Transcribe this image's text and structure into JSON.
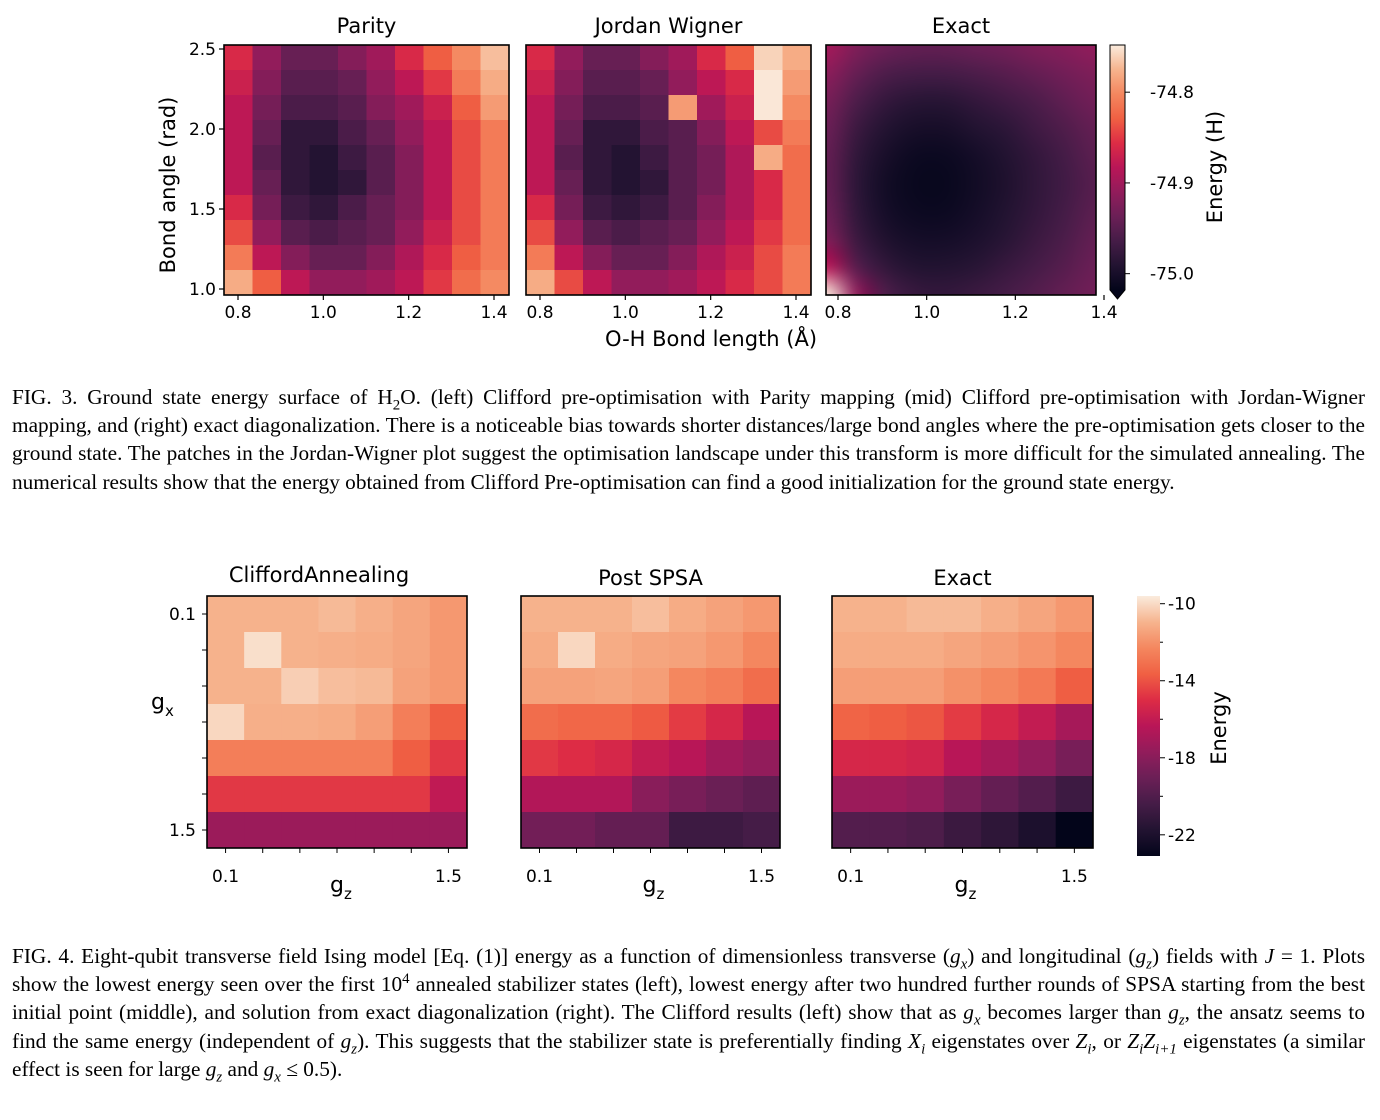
{
  "figure3": {
    "chart_data": [
      {
        "type": "heatmap",
        "title": "Parity",
        "ylabel": "Bond angle (rad)",
        "x": [
          0.8,
          0.867,
          0.933,
          1.0,
          1.067,
          1.133,
          1.2,
          1.267,
          1.333,
          1.4
        ],
        "y": [
          2.5,
          2.333,
          2.167,
          2.0,
          1.833,
          1.667,
          1.5,
          1.333,
          1.167,
          1.0
        ],
        "xticks": [
          "0.8",
          "1.0",
          "1.2",
          "1.4"
        ],
        "yticks": [
          "1.0",
          "1.5",
          "2.0",
          "2.5"
        ],
        "z": [
          [
            -74.86,
            -74.91,
            -74.94,
            -74.94,
            -74.92,
            -74.9,
            -74.86,
            -74.83,
            -74.8,
            -74.77
          ],
          [
            -74.87,
            -74.92,
            -74.95,
            -74.95,
            -74.94,
            -74.91,
            -74.88,
            -74.85,
            -74.81,
            -74.78
          ],
          [
            -74.88,
            -74.93,
            -74.96,
            -74.96,
            -74.95,
            -74.92,
            -74.9,
            -74.87,
            -74.83,
            -74.79
          ],
          [
            -74.88,
            -74.94,
            -74.98,
            -74.98,
            -74.96,
            -74.94,
            -74.91,
            -74.88,
            -74.84,
            -74.81
          ],
          [
            -74.88,
            -74.95,
            -74.98,
            -74.99,
            -74.97,
            -74.95,
            -74.92,
            -74.88,
            -74.84,
            -74.81
          ],
          [
            -74.88,
            -74.94,
            -74.98,
            -74.99,
            -74.98,
            -74.95,
            -74.92,
            -74.88,
            -74.84,
            -74.81
          ],
          [
            -74.86,
            -74.93,
            -74.97,
            -74.98,
            -74.96,
            -74.94,
            -74.92,
            -74.88,
            -74.84,
            -74.81
          ],
          [
            -74.84,
            -74.91,
            -74.95,
            -74.96,
            -74.95,
            -74.94,
            -74.91,
            -74.87,
            -74.84,
            -74.81
          ],
          [
            -74.81,
            -74.88,
            -74.92,
            -74.94,
            -74.94,
            -74.92,
            -74.89,
            -74.86,
            -74.83,
            -74.81
          ],
          [
            -74.78,
            -74.83,
            -74.88,
            -74.91,
            -74.91,
            -74.9,
            -74.88,
            -74.85,
            -74.82,
            -74.8
          ]
        ]
      },
      {
        "type": "heatmap",
        "title": "Jordan Wigner",
        "x": [
          0.8,
          0.867,
          0.933,
          1.0,
          1.067,
          1.133,
          1.2,
          1.267,
          1.333,
          1.4
        ],
        "y": [
          2.5,
          2.333,
          2.167,
          2.0,
          1.833,
          1.667,
          1.5,
          1.333,
          1.167,
          1.0
        ],
        "xticks": [
          "0.8",
          "1.0",
          "1.2",
          "1.4"
        ],
        "z": [
          [
            -74.86,
            -74.91,
            -74.94,
            -74.94,
            -74.92,
            -74.9,
            -74.86,
            -74.83,
            -74.76,
            -74.78
          ],
          [
            -74.87,
            -74.92,
            -74.95,
            -74.95,
            -74.94,
            -74.91,
            -74.88,
            -74.86,
            -74.75,
            -74.79
          ],
          [
            -74.88,
            -74.93,
            -74.96,
            -74.96,
            -74.95,
            -74.79,
            -74.9,
            -74.87,
            -74.75,
            -74.8
          ],
          [
            -74.88,
            -74.94,
            -74.98,
            -74.98,
            -74.96,
            -74.95,
            -74.92,
            -74.88,
            -74.84,
            -74.81
          ],
          [
            -74.88,
            -74.95,
            -74.98,
            -74.99,
            -74.97,
            -74.95,
            -74.93,
            -74.89,
            -74.78,
            -74.82
          ],
          [
            -74.88,
            -74.94,
            -74.98,
            -74.99,
            -74.98,
            -74.95,
            -74.93,
            -74.89,
            -74.86,
            -74.82
          ],
          [
            -74.86,
            -74.93,
            -74.97,
            -74.98,
            -74.97,
            -74.95,
            -74.92,
            -74.89,
            -74.86,
            -74.82
          ],
          [
            -74.84,
            -74.91,
            -74.95,
            -74.96,
            -74.95,
            -74.94,
            -74.91,
            -74.88,
            -74.85,
            -74.82
          ],
          [
            -74.81,
            -74.88,
            -74.92,
            -74.94,
            -74.94,
            -74.92,
            -74.89,
            -74.87,
            -74.84,
            -74.81
          ],
          [
            -74.78,
            -74.84,
            -74.88,
            -74.91,
            -74.91,
            -74.9,
            -74.88,
            -74.86,
            -74.84,
            -74.81
          ]
        ]
      },
      {
        "type": "heatmap",
        "title": "Exact",
        "interpolation": "smooth",
        "x": [
          0.8,
          0.867,
          0.933,
          1.0,
          1.067,
          1.133,
          1.2,
          1.267,
          1.333,
          1.4
        ],
        "y": [
          2.5,
          2.333,
          2.167,
          2.0,
          1.833,
          1.667,
          1.5,
          1.333,
          1.167,
          1.0
        ],
        "xticks": [
          "0.8",
          "1.0",
          "1.2",
          "1.4"
        ],
        "z": [
          [
            -74.897,
            -74.924,
            -74.937,
            -74.942,
            -74.942,
            -74.937,
            -74.932,
            -74.924,
            -74.918,
            -74.91
          ],
          [
            -74.915,
            -74.942,
            -74.959,
            -74.964,
            -74.964,
            -74.959,
            -74.951,
            -74.942,
            -74.932,
            -74.924
          ],
          [
            -74.929,
            -74.959,
            -74.978,
            -74.986,
            -74.986,
            -74.978,
            -74.969,
            -74.959,
            -74.945,
            -74.932
          ],
          [
            -74.937,
            -74.972,
            -74.991,
            -75.0,
            -75.0,
            -74.991,
            -74.983,
            -74.969,
            -74.956,
            -74.942
          ],
          [
            -74.942,
            -74.98,
            -75.0,
            -75.01,
            -75.01,
            -75.002,
            -74.991,
            -74.978,
            -74.964,
            -74.948
          ],
          [
            -74.942,
            -74.983,
            -75.005,
            -75.013,
            -75.013,
            -75.005,
            -74.994,
            -74.98,
            -74.967,
            -74.951
          ],
          [
            -74.937,
            -74.98,
            -75.002,
            -75.01,
            -75.01,
            -75.002,
            -74.991,
            -74.978,
            -74.964,
            -74.948
          ],
          [
            -74.924,
            -74.972,
            -74.994,
            -75.002,
            -75.002,
            -74.996,
            -74.986,
            -74.972,
            -74.959,
            -74.942
          ],
          [
            -74.883,
            -74.953,
            -74.98,
            -74.991,
            -74.991,
            -74.986,
            -74.975,
            -74.964,
            -74.951,
            -74.937
          ],
          [
            -74.748,
            -74.91,
            -74.959,
            -74.975,
            -74.978,
            -74.972,
            -74.964,
            -74.953,
            -74.942,
            -74.932
          ]
        ]
      }
    ],
    "xlabel": "O-H Bond length (Å)",
    "colorbar": {
      "label": "Energy (H)",
      "ticks": [
        -74.8,
        -74.9,
        -75.0
      ],
      "tick_labels": [
        "-74.8",
        "-74.9",
        "-75.0"
      ],
      "vmin": -75.018,
      "vmax": -74.748,
      "extend": "min",
      "colormap": "rocket"
    },
    "caption": [
      "FIG. 3.  Ground state energy surface of H",
      {
        "sub": "2"
      },
      "O. (left) Clifford pre-optimisation with Parity mapping (mid) Clifford pre-optimisation with Jordan-Wigner mapping, and (right) exact diagonalization.  There is a noticeable bias towards shorter distances/large bond angles where the pre-optimisation gets closer to the ground state. The patches in the Jordan-Wigner plot suggest the optimisation landscape under this transform is more difficult for the simulated annealing. The numerical results show that the energy obtained from Clifford Pre-optimisation can find a good initialization for the ground state energy."
    ]
  },
  "figure4": {
    "chart_data": [
      {
        "type": "heatmap",
        "title": "CliffordAnnealing",
        "xlabel": "g_z",
        "ylabel": "g_x",
        "x": [
          0.1,
          0.333,
          0.567,
          0.8,
          1.033,
          1.267,
          1.5
        ],
        "y": [
          0.1,
          0.333,
          0.567,
          0.8,
          1.033,
          1.267,
          1.5
        ],
        "xticks": [
          "0.1",
          "1.5"
        ],
        "yticks": [
          "0.1",
          "1.5"
        ],
        "z": [
          [
            -11.0,
            -11.0,
            -11.0,
            -10.8,
            -11.1,
            -11.4,
            -11.8
          ],
          [
            -11.0,
            -9.9,
            -11.0,
            -11.1,
            -11.2,
            -11.4,
            -11.8
          ],
          [
            -11.0,
            -11.0,
            -10.3,
            -10.7,
            -10.8,
            -11.5,
            -11.8
          ],
          [
            -10.1,
            -11.1,
            -11.1,
            -11.2,
            -11.6,
            -12.6,
            -13.7
          ],
          [
            -12.6,
            -12.6,
            -12.6,
            -12.6,
            -12.6,
            -13.7,
            -14.7
          ],
          [
            -14.7,
            -14.7,
            -14.7,
            -14.7,
            -14.7,
            -14.7,
            -16.1
          ],
          [
            -17.4,
            -17.4,
            -17.4,
            -17.4,
            -17.4,
            -17.4,
            -17.4
          ]
        ]
      },
      {
        "type": "heatmap",
        "title": "Post SPSA",
        "xlabel": "g_z",
        "x": [
          0.1,
          0.333,
          0.567,
          0.8,
          1.033,
          1.267,
          1.5
        ],
        "y": [
          0.1,
          0.333,
          0.567,
          0.8,
          1.033,
          1.267,
          1.5
        ],
        "xticks": [
          "0.1",
          "1.5"
        ],
        "z": [
          [
            -11.0,
            -11.0,
            -11.0,
            -10.7,
            -11.2,
            -11.5,
            -11.8
          ],
          [
            -11.2,
            -10.1,
            -11.2,
            -11.4,
            -11.5,
            -11.8,
            -12.3
          ],
          [
            -11.5,
            -11.5,
            -11.4,
            -11.6,
            -12.3,
            -12.6,
            -13.2
          ],
          [
            -13.2,
            -13.4,
            -13.4,
            -13.8,
            -14.6,
            -15.3,
            -16.4
          ],
          [
            -14.7,
            -15.0,
            -15.3,
            -16.0,
            -16.4,
            -17.2,
            -17.7
          ],
          [
            -16.6,
            -16.6,
            -16.6,
            -18.0,
            -18.6,
            -19.1,
            -19.5
          ],
          [
            -18.8,
            -18.8,
            -19.3,
            -19.3,
            -20.7,
            -20.7,
            -20.4
          ]
        ]
      },
      {
        "type": "heatmap",
        "title": "Exact",
        "xlabel": "g_z",
        "x": [
          0.1,
          0.333,
          0.567,
          0.8,
          1.033,
          1.267,
          1.5
        ],
        "y": [
          0.1,
          0.333,
          0.567,
          0.8,
          1.033,
          1.267,
          1.5
        ],
        "xticks": [
          "0.1",
          "1.5"
        ],
        "z": [
          [
            -11.0,
            -11.0,
            -10.8,
            -10.8,
            -11.1,
            -11.4,
            -11.8
          ],
          [
            -11.2,
            -11.2,
            -11.2,
            -11.4,
            -11.6,
            -11.9,
            -12.3
          ],
          [
            -11.6,
            -11.6,
            -11.6,
            -12.0,
            -12.3,
            -12.8,
            -13.7
          ],
          [
            -13.5,
            -13.7,
            -13.9,
            -14.6,
            -15.3,
            -16.0,
            -17.0
          ],
          [
            -15.3,
            -15.3,
            -15.5,
            -16.4,
            -17.0,
            -17.7,
            -18.6
          ],
          [
            -17.4,
            -17.4,
            -17.7,
            -18.6,
            -19.3,
            -19.9,
            -20.7
          ],
          [
            -19.9,
            -19.9,
            -20.1,
            -20.8,
            -21.3,
            -22.0,
            -23.1
          ]
        ]
      }
    ],
    "colorbar": {
      "label": "Energy",
      "ticks": [
        -10,
        -14,
        -18,
        -22
      ],
      "tick_labels": [
        "-10",
        "-14",
        "-18",
        "-22"
      ],
      "minor_ticks": [
        -12,
        -16,
        -20
      ],
      "vmin": -23.1,
      "vmax": -9.6,
      "colormap": "rocket"
    },
    "caption": [
      "FIG. 4.  Eight-qubit transverse field Ising model [Eq. (1)] energy as a function of dimensionless transverse (",
      {
        "i": "g",
        "sub": "x"
      },
      ") and longitudinal (",
      {
        "i": "g",
        "sub": "z"
      },
      ") fields with ",
      {
        "i": "J"
      },
      " = 1.  Plots show the lowest energy seen over the first 10",
      {
        "sup": "4"
      },
      " annealed stabilizer states (left), lowest energy after two hundred further rounds of SPSA starting from the best initial point (middle), and solution from exact diagonalization (right). The Clifford results (left) show that as ",
      {
        "i": "g",
        "sub": "x"
      },
      " becomes larger than ",
      {
        "i": "g",
        "sub": "z"
      },
      ", the ansatz seems to find the same energy (independent of ",
      {
        "i": "g",
        "sub": "z"
      },
      "). This suggests that the stabilizer state is preferentially finding ",
      {
        "i": "X",
        "sub": "i"
      },
      " eigenstates over ",
      {
        "i": "Z",
        "sub": "i"
      },
      ", or ",
      {
        "i": "Z",
        "sub": "i"
      },
      {
        "i": "Z",
        "sub": "i+1"
      },
      " eigenstates (a similar effect is seen for large ",
      {
        "i": "g",
        "sub": "z"
      },
      " and ",
      {
        "i": "g",
        "sub": "x"
      },
      " ≤ 0.5)."
    ]
  }
}
